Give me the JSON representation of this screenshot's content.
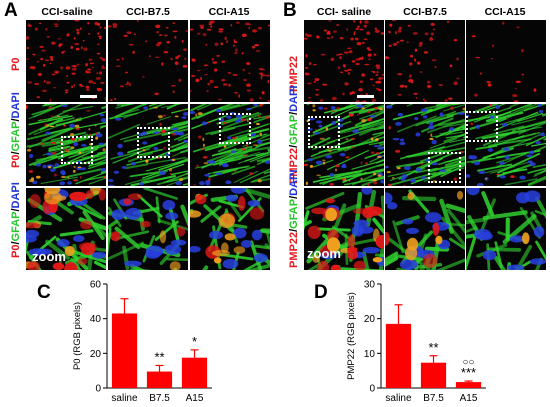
{
  "panels": {
    "A": {
      "letter": "A",
      "columns": [
        "CCI-saline",
        "CCI-B7.5",
        "CCI-A15"
      ],
      "row1_label": "P0",
      "row2_label_parts": [
        "P0",
        "/",
        "GFAP",
        "/",
        "DAPI"
      ],
      "zoom_label": "zoom"
    },
    "B": {
      "letter": "B",
      "columns": [
        "CCI- saline",
        "CCI-B7.5",
        "CCI-A15"
      ],
      "row1_label": "PMP22",
      "row2_label_parts": [
        "PMP22",
        "/",
        "GFAP",
        "/",
        "DAPI"
      ],
      "zoom_label": "zoom"
    },
    "C": {
      "letter": "C"
    },
    "D": {
      "letter": "D"
    }
  },
  "colors": {
    "bar": "#ff0000",
    "red_stain": "#e8181c",
    "green_stain": "#26c72a",
    "blue_stain": "#2034d8"
  },
  "chart_data": [
    {
      "type": "bar",
      "panel": "C",
      "categories": [
        "saline",
        "B7.5",
        "A15"
      ],
      "values": [
        43,
        9.5,
        17.5
      ],
      "errors": [
        8.5,
        3.5,
        4.5
      ],
      "significance": [
        "",
        "**",
        "*"
      ],
      "ylabel": "P0 (RGB pixels)",
      "ylim": [
        0,
        60
      ],
      "yticks": [
        "0",
        "20",
        "40",
        "60"
      ]
    },
    {
      "type": "bar",
      "panel": "D",
      "categories": [
        "saline",
        "B7.5",
        "A15"
      ],
      "values": [
        18.5,
        7.3,
        1.7
      ],
      "errors": [
        5.5,
        2.0,
        0.3
      ],
      "significance": [
        "",
        "**",
        "***"
      ],
      "significance2": [
        "",
        "",
        "○○"
      ],
      "ylabel": "PMP22 (RGB pixels)",
      "ylim": [
        0,
        30
      ],
      "yticks": [
        "0",
        "10",
        "20",
        "30"
      ]
    }
  ]
}
